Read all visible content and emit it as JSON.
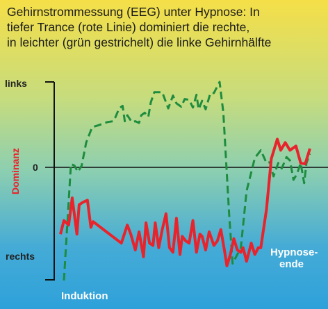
{
  "title_lines": [
    "Gehirnstrommessung (EEG) unter Hypnose: In",
    "tiefer Trance (rote Linie) dominiert die rechte,",
    "in leichter (grün gestrichelt) die linke Gehirnhälfte"
  ],
  "chart_data": {
    "type": "line",
    "title": "Gehirnstrommessung (EEG) unter Hypnose: In tiefer Trance (rote Linie) dominiert die rechte, in leichter (grün gestrichelt) die linke Gehirnhälfte",
    "xlabel": "",
    "ylabel": "Dominanz",
    "y_tick_labels": [
      "links",
      "0",
      "rechts"
    ],
    "ylim": [
      -1,
      1
    ],
    "xlim": [
      0,
      100
    ],
    "grid": false,
    "annotations": [
      "Induktion",
      "Hypnose-ende"
    ],
    "colors": {
      "red": "#e8232b",
      "green": "#1e8c3e"
    },
    "series": [
      {
        "key": "red",
        "style": "solid",
        "x": [
          0,
          1.4,
          3.3,
          4.7,
          6.6,
          7.5,
          8.9,
          10.8,
          12.2,
          13.1,
          24.4,
          26.8,
          28.2,
          30.0,
          31.5,
          33.3,
          34.3,
          35.7,
          37.1,
          38.0,
          39.4,
          40.8,
          42.3,
          43.7,
          45.1,
          46.5,
          47.9,
          48.8,
          50.2,
          51.6,
          53.1,
          54.5,
          55.9,
          56.8,
          58.2,
          59.6,
          61.5,
          62.9,
          64.3,
          65.7,
          66.7,
          68.1,
          69.5,
          70.9,
          72.3,
          73.2,
          74.6,
          76.5,
          77.9,
          79.3,
          80.3,
          82.6,
          84.5,
          86.9,
          88.3,
          90.1,
          92.0,
          94.4,
          96.3,
          98.1,
          100
        ],
        "y": [
          -0.59,
          -0.47,
          -0.51,
          -0.27,
          -0.59,
          -0.33,
          -0.31,
          -0.29,
          -0.53,
          -0.48,
          -0.67,
          -0.51,
          -0.59,
          -0.73,
          -0.57,
          -0.79,
          -0.49,
          -0.67,
          -0.69,
          -0.49,
          -0.71,
          -0.55,
          -0.41,
          -0.71,
          -0.75,
          -0.45,
          -0.77,
          -0.61,
          -0.65,
          -0.67,
          -0.47,
          -0.75,
          -0.59,
          -0.61,
          -0.73,
          -0.57,
          -0.69,
          -0.65,
          -0.55,
          -0.73,
          -0.87,
          -0.77,
          -0.63,
          -0.73,
          -0.75,
          -0.71,
          -0.83,
          -0.67,
          -0.77,
          -0.71,
          -0.71,
          -0.37,
          0.1,
          0.33,
          0.2,
          0.29,
          0.2,
          0.25,
          0.05,
          0.04,
          0.22
        ]
      },
      {
        "key": "green",
        "style": "dashed",
        "x": [
          1.4,
          4.2,
          5.6,
          7.0,
          8.5,
          10.3,
          12.7,
          15.0,
          18.8,
          21.1,
          22.1,
          23.5,
          24.9,
          25.8,
          26.8,
          28.6,
          30.0,
          31.5,
          32.4,
          33.8,
          35.2,
          36.2,
          37.6,
          40.8,
          43.2,
          45.1,
          46.5,
          48.4,
          49.8,
          51.6,
          53.1,
          54.5,
          55.4,
          56.8,
          58.2,
          60.1,
          61.5,
          63.8,
          65.3,
          66.2,
          67.6,
          69.0,
          72.3,
          74.6,
          77.9,
          80.3,
          82.6,
          84.0,
          85.4,
          87.3,
          88.7,
          90.6,
          92.0,
          93.4,
          94.8,
          96.3,
          97.7,
          98.6,
          100
        ],
        "y": [
          -1.0,
          0.04,
          0.02,
          -0.04,
          0.02,
          0.29,
          0.47,
          0.49,
          0.53,
          0.54,
          0.59,
          0.69,
          0.72,
          0.54,
          0.61,
          0.53,
          0.54,
          0.52,
          0.61,
          0.64,
          0.59,
          0.76,
          0.88,
          0.88,
          0.69,
          0.84,
          0.75,
          0.71,
          0.8,
          0.79,
          0.7,
          0.85,
          0.68,
          0.78,
          0.68,
          0.87,
          0.87,
          1.0,
          0.64,
          0.17,
          -0.41,
          -0.85,
          -0.71,
          -0.21,
          0.11,
          0.2,
          0.05,
          0.06,
          -0.08,
          0.05,
          -0.01,
          0.12,
          0.08,
          -0.11,
          -0.06,
          0.05,
          -0.14,
          0.05,
          0.16
        ]
      }
    ]
  }
}
